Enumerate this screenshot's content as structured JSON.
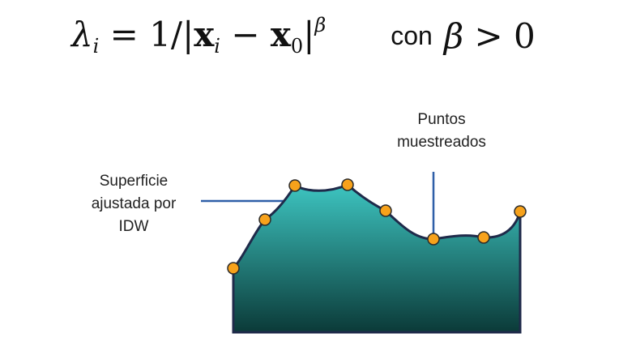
{
  "formula": {
    "lambda": "λ",
    "sub_i": "i",
    "equals_one_over": " = 1/|",
    "x_bold": "x",
    "minus": " − ",
    "sub_zero": "0",
    "close_bar": "|",
    "beta_exp": "β",
    "con": "con",
    "beta": "β",
    "condition": " > 0"
  },
  "labels": {
    "surface": [
      "Superficie",
      "ajustada por",
      "IDW"
    ],
    "points": [
      "Puntos",
      "muestreados"
    ]
  },
  "colors": {
    "fill_top": "#3dc4c0",
    "fill_bottom": "#0b3a38",
    "outline": "#1f2a4a",
    "point_fill": "#f7a21b",
    "point_stroke": "#2b2b2b",
    "leader_line": "#2f5fa8"
  }
}
